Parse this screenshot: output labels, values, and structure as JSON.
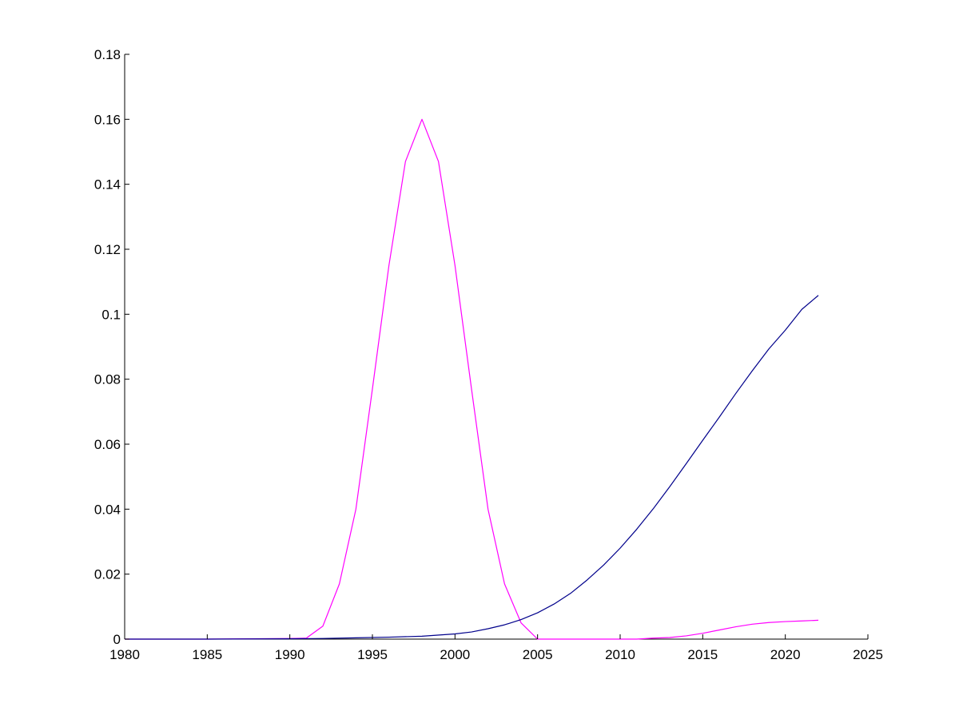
{
  "chart_data": {
    "type": "line",
    "title": "",
    "xlabel": "",
    "ylabel": "",
    "xlim": [
      1980,
      2025
    ],
    "ylim": [
      0,
      0.18
    ],
    "xticks": [
      1980,
      1985,
      1990,
      1995,
      2000,
      2005,
      2010,
      2015,
      2020,
      2025
    ],
    "yticks": [
      0,
      0.02,
      0.04,
      0.06,
      0.08,
      0.1,
      0.12,
      0.14,
      0.16,
      0.18
    ],
    "xtick_labels": [
      "1980",
      "1985",
      "1990",
      "1995",
      "2000",
      "2005",
      "2010",
      "2015",
      "2020",
      "2025"
    ],
    "ytick_labels": [
      "0",
      "0.02",
      "0.04",
      "0.06",
      "0.08",
      "0.1",
      "0.12",
      "0.14",
      "0.16",
      "0.18"
    ],
    "grid": false,
    "axes_box": "left-bottom",
    "series": [
      {
        "color": "#ff00ff",
        "x": [
          1980,
          1985,
          1990,
          1991,
          1992,
          1993,
          1994,
          1995,
          1996,
          1997,
          1998,
          1999,
          2000,
          2001,
          2002,
          2003,
          2004,
          2005,
          2010,
          2011,
          2012,
          2013,
          2014,
          2015,
          2016,
          2017,
          2018,
          2019,
          2020,
          2021,
          2022
        ],
        "y": [
          0,
          0,
          0.0002,
          0.0003,
          0.004,
          0.017,
          0.04,
          0.077,
          0.115,
          0.147,
          0.16,
          0.147,
          0.115,
          0.077,
          0.04,
          0.017,
          0.005,
          0,
          0,
          0,
          0.0003,
          0.0005,
          0.001,
          0.0018,
          0.0028,
          0.0038,
          0.0046,
          0.0051,
          0.0054,
          0.0056,
          0.0058
        ]
      },
      {
        "color": "#00008b",
        "x": [
          1980,
          1985,
          1990,
          1992,
          1994,
          1996,
          1998,
          2000,
          2001,
          2002,
          2003,
          2004,
          2005,
          2006,
          2007,
          2008,
          2009,
          2010,
          2011,
          2012,
          2013,
          2014,
          2015,
          2016,
          2017,
          2018,
          2019,
          2020,
          2021,
          2022
        ],
        "y": [
          0,
          0,
          0.0001,
          0.0002,
          0.0004,
          0.0006,
          0.0009,
          0.0016,
          0.0022,
          0.0032,
          0.0044,
          0.006,
          0.0081,
          0.0108,
          0.0141,
          0.0182,
          0.0228,
          0.028,
          0.0338,
          0.0401,
          0.0469,
          0.054,
          0.0612,
          0.0683,
          0.0756,
          0.0826,
          0.0893,
          0.0951,
          0.1015,
          0.1058
        ]
      }
    ]
  }
}
